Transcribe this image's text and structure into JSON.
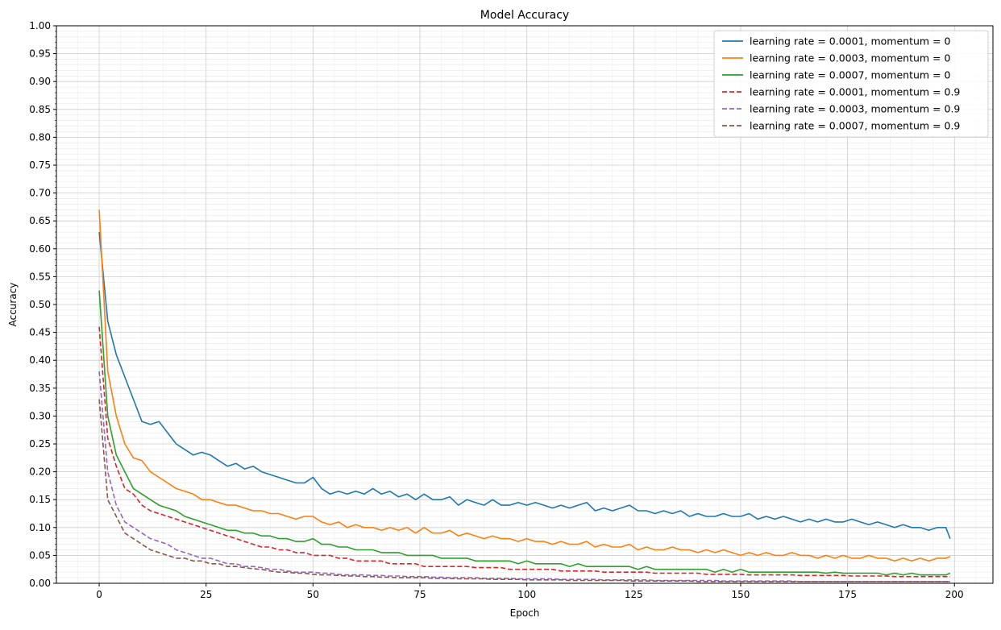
{
  "chart_data": {
    "type": "line",
    "title": "Model Accuracy",
    "xlabel": "Epoch",
    "ylabel": "Accuracy",
    "xlim": [
      -10,
      209
    ],
    "ylim": [
      0,
      1
    ],
    "xticks": [
      0,
      25,
      50,
      75,
      100,
      125,
      150,
      175,
      200
    ],
    "yticks": [
      0.0,
      0.05,
      0.1,
      0.15,
      0.2,
      0.25,
      0.3,
      0.35,
      0.4,
      0.45,
      0.5,
      0.55,
      0.6,
      0.65,
      0.7,
      0.75,
      0.8,
      0.85,
      0.9,
      0.95,
      1.0
    ],
    "ytick_labels": [
      "0.00",
      "0.05",
      "0.10",
      "0.15",
      "0.20",
      "0.25",
      "0.30",
      "0.35",
      "0.40",
      "0.45",
      "0.50",
      "0.55",
      "0.60",
      "0.65",
      "0.70",
      "0.75",
      "0.80",
      "0.85",
      "0.90",
      "0.95",
      "1.00"
    ],
    "grid": "major and minor",
    "legend_position": "top-right",
    "x": [
      0,
      2,
      4,
      6,
      8,
      10,
      12,
      14,
      16,
      18,
      20,
      22,
      24,
      26,
      28,
      30,
      32,
      34,
      36,
      38,
      40,
      42,
      44,
      46,
      48,
      50,
      52,
      54,
      56,
      58,
      60,
      62,
      64,
      66,
      68,
      70,
      72,
      74,
      76,
      78,
      80,
      82,
      84,
      86,
      88,
      90,
      92,
      94,
      96,
      98,
      100,
      102,
      104,
      106,
      108,
      110,
      112,
      114,
      116,
      118,
      120,
      122,
      124,
      126,
      128,
      130,
      132,
      134,
      136,
      138,
      140,
      142,
      144,
      146,
      148,
      150,
      152,
      154,
      156,
      158,
      160,
      162,
      164,
      166,
      168,
      170,
      172,
      174,
      176,
      178,
      180,
      182,
      184,
      186,
      188,
      190,
      192,
      194,
      196,
      198,
      199
    ],
    "series": [
      {
        "name": "learning rate = 0.0001, momentum = 0",
        "color": "#1f77b4",
        "dashed": false,
        "values": [
          0.63,
          0.47,
          0.41,
          0.37,
          0.33,
          0.29,
          0.285,
          0.29,
          0.27,
          0.25,
          0.24,
          0.23,
          0.235,
          0.23,
          0.22,
          0.21,
          0.215,
          0.205,
          0.21,
          0.2,
          0.195,
          0.19,
          0.185,
          0.18,
          0.18,
          0.19,
          0.17,
          0.16,
          0.165,
          0.16,
          0.165,
          0.16,
          0.17,
          0.16,
          0.165,
          0.155,
          0.16,
          0.15,
          0.16,
          0.15,
          0.15,
          0.155,
          0.14,
          0.15,
          0.145,
          0.14,
          0.15,
          0.14,
          0.14,
          0.145,
          0.14,
          0.145,
          0.14,
          0.135,
          0.14,
          0.135,
          0.14,
          0.145,
          0.13,
          0.135,
          0.13,
          0.135,
          0.14,
          0.13,
          0.13,
          0.125,
          0.13,
          0.125,
          0.13,
          0.12,
          0.125,
          0.12,
          0.12,
          0.125,
          0.12,
          0.12,
          0.125,
          0.115,
          0.12,
          0.115,
          0.12,
          0.115,
          0.11,
          0.115,
          0.11,
          0.115,
          0.11,
          0.11,
          0.115,
          0.11,
          0.105,
          0.11,
          0.105,
          0.1,
          0.105,
          0.1,
          0.1,
          0.095,
          0.1,
          0.1,
          0.08
        ]
      },
      {
        "name": "learning rate = 0.0003, momentum = 0",
        "color": "#ff7f0e",
        "dashed": false,
        "values": [
          0.67,
          0.38,
          0.3,
          0.25,
          0.225,
          0.22,
          0.2,
          0.19,
          0.18,
          0.17,
          0.165,
          0.16,
          0.15,
          0.15,
          0.145,
          0.14,
          0.14,
          0.135,
          0.13,
          0.13,
          0.125,
          0.125,
          0.12,
          0.115,
          0.12,
          0.12,
          0.11,
          0.105,
          0.11,
          0.1,
          0.105,
          0.1,
          0.1,
          0.095,
          0.1,
          0.095,
          0.1,
          0.09,
          0.1,
          0.09,
          0.09,
          0.095,
          0.085,
          0.09,
          0.085,
          0.08,
          0.085,
          0.08,
          0.08,
          0.075,
          0.08,
          0.075,
          0.075,
          0.07,
          0.075,
          0.07,
          0.07,
          0.075,
          0.065,
          0.07,
          0.065,
          0.065,
          0.07,
          0.06,
          0.065,
          0.06,
          0.06,
          0.065,
          0.06,
          0.06,
          0.055,
          0.06,
          0.055,
          0.06,
          0.055,
          0.05,
          0.055,
          0.05,
          0.055,
          0.05,
          0.05,
          0.055,
          0.05,
          0.05,
          0.045,
          0.05,
          0.045,
          0.05,
          0.045,
          0.045,
          0.05,
          0.045,
          0.045,
          0.04,
          0.045,
          0.04,
          0.045,
          0.04,
          0.045,
          0.045,
          0.048
        ]
      },
      {
        "name": "learning rate = 0.0007, momentum = 0",
        "color": "#2ca02c",
        "dashed": false,
        "values": [
          0.525,
          0.3,
          0.23,
          0.2,
          0.17,
          0.16,
          0.15,
          0.14,
          0.135,
          0.13,
          0.12,
          0.115,
          0.11,
          0.105,
          0.1,
          0.095,
          0.095,
          0.09,
          0.09,
          0.085,
          0.085,
          0.08,
          0.08,
          0.075,
          0.075,
          0.08,
          0.07,
          0.07,
          0.065,
          0.065,
          0.06,
          0.06,
          0.06,
          0.055,
          0.055,
          0.055,
          0.05,
          0.05,
          0.05,
          0.05,
          0.045,
          0.045,
          0.045,
          0.045,
          0.04,
          0.04,
          0.04,
          0.04,
          0.04,
          0.035,
          0.04,
          0.035,
          0.035,
          0.035,
          0.035,
          0.03,
          0.035,
          0.03,
          0.03,
          0.03,
          0.03,
          0.03,
          0.03,
          0.025,
          0.03,
          0.025,
          0.025,
          0.025,
          0.025,
          0.025,
          0.025,
          0.025,
          0.02,
          0.025,
          0.02,
          0.025,
          0.02,
          0.02,
          0.02,
          0.02,
          0.02,
          0.02,
          0.02,
          0.02,
          0.02,
          0.018,
          0.02,
          0.018,
          0.018,
          0.018,
          0.018,
          0.018,
          0.015,
          0.018,
          0.015,
          0.018,
          0.015,
          0.015,
          0.015,
          0.015,
          0.018
        ]
      },
      {
        "name": "learning rate = 0.0001, momentum = 0.9",
        "color": "#d62728",
        "dashed": true,
        "values": [
          0.46,
          0.26,
          0.21,
          0.17,
          0.16,
          0.14,
          0.13,
          0.125,
          0.12,
          0.115,
          0.11,
          0.105,
          0.1,
          0.095,
          0.09,
          0.085,
          0.08,
          0.075,
          0.07,
          0.065,
          0.065,
          0.06,
          0.06,
          0.055,
          0.055,
          0.05,
          0.05,
          0.05,
          0.045,
          0.045,
          0.04,
          0.04,
          0.04,
          0.04,
          0.035,
          0.035,
          0.035,
          0.035,
          0.03,
          0.03,
          0.03,
          0.03,
          0.03,
          0.03,
          0.028,
          0.028,
          0.028,
          0.028,
          0.025,
          0.025,
          0.025,
          0.025,
          0.025,
          0.025,
          0.022,
          0.022,
          0.022,
          0.022,
          0.022,
          0.02,
          0.02,
          0.02,
          0.02,
          0.02,
          0.02,
          0.018,
          0.018,
          0.018,
          0.018,
          0.018,
          0.018,
          0.016,
          0.016,
          0.016,
          0.016,
          0.016,
          0.015,
          0.015,
          0.015,
          0.015,
          0.015,
          0.015,
          0.014,
          0.014,
          0.014,
          0.014,
          0.014,
          0.014,
          0.013,
          0.013,
          0.013,
          0.013,
          0.013,
          0.012,
          0.012,
          0.012,
          0.012,
          0.012,
          0.012,
          0.012,
          0.012
        ]
      },
      {
        "name": "learning rate = 0.0003, momentum = 0.9",
        "color": "#9467bd",
        "dashed": true,
        "values": [
          0.38,
          0.2,
          0.14,
          0.11,
          0.1,
          0.09,
          0.08,
          0.075,
          0.07,
          0.06,
          0.055,
          0.05,
          0.045,
          0.045,
          0.04,
          0.035,
          0.035,
          0.03,
          0.03,
          0.028,
          0.025,
          0.025,
          0.022,
          0.02,
          0.02,
          0.02,
          0.018,
          0.018,
          0.016,
          0.015,
          0.015,
          0.015,
          0.014,
          0.014,
          0.013,
          0.013,
          0.012,
          0.012,
          0.012,
          0.011,
          0.011,
          0.01,
          0.01,
          0.01,
          0.01,
          0.009,
          0.009,
          0.009,
          0.009,
          0.008,
          0.008,
          0.008,
          0.008,
          0.008,
          0.007,
          0.007,
          0.007,
          0.007,
          0.007,
          0.006,
          0.006,
          0.006,
          0.006,
          0.006,
          0.006,
          0.005,
          0.005,
          0.005,
          0.005,
          0.005,
          0.005,
          0.005,
          0.005,
          0.004,
          0.004,
          0.004,
          0.004,
          0.004,
          0.004,
          0.004,
          0.004,
          0.004,
          0.003,
          0.003,
          0.003,
          0.003,
          0.003,
          0.003,
          0.003,
          0.003,
          0.003,
          0.003,
          0.003,
          0.003,
          0.003,
          0.003,
          0.003,
          0.003,
          0.003,
          0.003,
          0.003
        ]
      },
      {
        "name": "learning rate = 0.0007, momentum = 0.9",
        "color": "#8c564b",
        "dashed": true,
        "values": [
          0.33,
          0.15,
          0.12,
          0.09,
          0.08,
          0.07,
          0.06,
          0.055,
          0.05,
          0.045,
          0.045,
          0.04,
          0.04,
          0.035,
          0.035,
          0.03,
          0.03,
          0.028,
          0.026,
          0.025,
          0.022,
          0.02,
          0.02,
          0.018,
          0.018,
          0.016,
          0.015,
          0.015,
          0.014,
          0.013,
          0.013,
          0.012,
          0.012,
          0.011,
          0.011,
          0.01,
          0.01,
          0.01,
          0.01,
          0.009,
          0.009,
          0.009,
          0.008,
          0.008,
          0.008,
          0.008,
          0.007,
          0.007,
          0.007,
          0.007,
          0.006,
          0.006,
          0.006,
          0.006,
          0.006,
          0.005,
          0.005,
          0.005,
          0.005,
          0.005,
          0.005,
          0.005,
          0.004,
          0.004,
          0.004,
          0.004,
          0.004,
          0.004,
          0.004,
          0.004,
          0.003,
          0.003,
          0.003,
          0.003,
          0.003,
          0.003,
          0.003,
          0.003,
          0.003,
          0.003,
          0.003,
          0.003,
          0.003,
          0.003,
          0.003,
          0.003,
          0.003,
          0.003,
          0.003,
          0.003,
          0.003,
          0.003,
          0.003,
          0.003,
          0.003,
          0.003,
          0.003,
          0.003,
          0.003,
          0.003,
          0.003
        ]
      }
    ]
  }
}
